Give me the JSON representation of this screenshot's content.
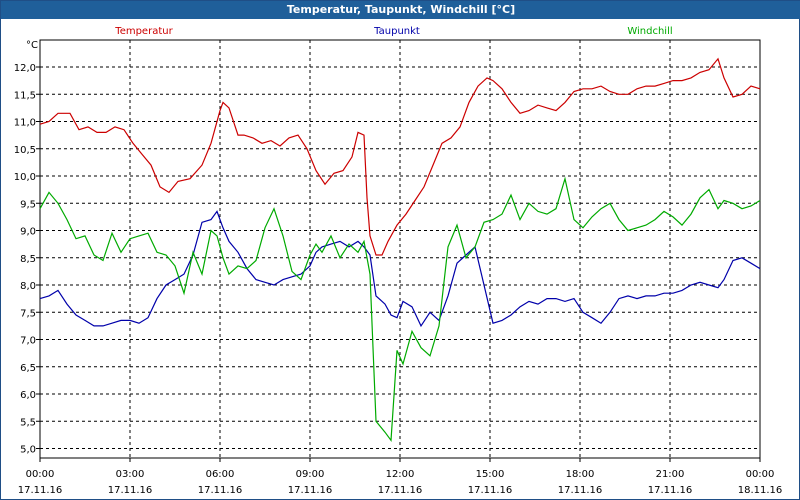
{
  "chart_data": {
    "type": "line",
    "title": "Temperatur, Taupunkt, Windchill [°C]",
    "ylabel": "°C",
    "ylim": [
      4.8,
      12.6
    ],
    "yticks": [
      "5,0",
      "5,5",
      "6,0",
      "6,5",
      "7,0",
      "7,5",
      "8,0",
      "8,5",
      "9,0",
      "9,5",
      "10,0",
      "10,5",
      "11,0",
      "11,5",
      "12,0"
    ],
    "xlim": [
      0,
      24
    ],
    "xticks": [
      {
        "time": "00:00",
        "date": "17.11.16"
      },
      {
        "time": "03:00",
        "date": "17.11.16"
      },
      {
        "time": "06:00",
        "date": "17.11.16"
      },
      {
        "time": "09:00",
        "date": "17.11.16"
      },
      {
        "time": "12:00",
        "date": "17.11.16"
      },
      {
        "time": "15:00",
        "date": "17.11.16"
      },
      {
        "time": "18:00",
        "date": "17.11.16"
      },
      {
        "time": "21:00",
        "date": "17.11.16"
      },
      {
        "time": "00:00",
        "date": "18.11.16"
      }
    ],
    "grid": true,
    "series": [
      {
        "name": "Temperatur",
        "color": "#cc0000",
        "x": [
          0,
          0.3,
          0.6,
          1.0,
          1.3,
          1.6,
          1.9,
          2.2,
          2.5,
          2.8,
          3.1,
          3.4,
          3.7,
          4.0,
          4.3,
          4.6,
          5.0,
          5.4,
          5.7,
          6.0,
          6.1,
          6.3,
          6.6,
          6.8,
          7.1,
          7.4,
          7.7,
          8.0,
          8.3,
          8.6,
          8.9,
          9.2,
          9.5,
          9.8,
          10.1,
          10.4,
          10.6,
          10.8,
          10.9,
          11.0,
          11.2,
          11.4,
          11.6,
          11.9,
          12.2,
          12.5,
          12.8,
          13.1,
          13.4,
          13.7,
          14.0,
          14.3,
          14.6,
          14.9,
          15.1,
          15.4,
          15.7,
          16.0,
          16.3,
          16.6,
          16.9,
          17.2,
          17.5,
          17.8,
          18.1,
          18.4,
          18.7,
          19.0,
          19.3,
          19.6,
          19.9,
          20.2,
          20.5,
          20.8,
          21.1,
          21.4,
          21.7,
          22.0,
          22.3,
          22.6,
          22.8,
          23.1,
          23.4,
          23.7,
          24.0
        ],
        "values": [
          10.95,
          11.0,
          11.15,
          11.15,
          10.85,
          10.9,
          10.8,
          10.8,
          10.9,
          10.85,
          10.6,
          10.4,
          10.2,
          9.8,
          9.7,
          9.9,
          9.95,
          10.2,
          10.6,
          11.2,
          11.35,
          11.25,
          10.75,
          10.75,
          10.7,
          10.6,
          10.65,
          10.55,
          10.7,
          10.75,
          10.5,
          10.1,
          9.85,
          10.05,
          10.1,
          10.35,
          10.8,
          10.75,
          9.6,
          8.9,
          8.55,
          8.55,
          8.8,
          9.1,
          9.3,
          9.55,
          9.8,
          10.2,
          10.6,
          10.7,
          10.9,
          11.35,
          11.65,
          11.8,
          11.75,
          11.6,
          11.35,
          11.15,
          11.2,
          11.3,
          11.25,
          11.2,
          11.35,
          11.55,
          11.6,
          11.6,
          11.65,
          11.55,
          11.5,
          11.5,
          11.6,
          11.65,
          11.65,
          11.7,
          11.75,
          11.75,
          11.8,
          11.9,
          11.95,
          12.15,
          11.8,
          11.45,
          11.5,
          11.65,
          11.6
        ]
      },
      {
        "name": "Taupunkt",
        "color": "#0000aa",
        "x": [
          0,
          0.3,
          0.6,
          0.9,
          1.2,
          1.5,
          1.8,
          2.1,
          2.4,
          2.7,
          3.0,
          3.3,
          3.6,
          3.9,
          4.2,
          4.5,
          4.8,
          5.1,
          5.4,
          5.7,
          5.9,
          6.1,
          6.3,
          6.6,
          6.9,
          7.2,
          7.5,
          7.8,
          8.1,
          8.4,
          8.7,
          9.0,
          9.2,
          9.4,
          9.7,
          10.0,
          10.3,
          10.6,
          10.8,
          11.0,
          11.2,
          11.5,
          11.7,
          11.9,
          12.1,
          12.4,
          12.7,
          13.0,
          13.3,
          13.6,
          13.9,
          14.2,
          14.5,
          14.8,
          15.1,
          15.4,
          15.7,
          16.0,
          16.3,
          16.6,
          16.9,
          17.2,
          17.5,
          17.8,
          18.1,
          18.4,
          18.7,
          19.0,
          19.3,
          19.6,
          19.9,
          20.2,
          20.5,
          20.8,
          21.1,
          21.4,
          21.7,
          22.0,
          22.3,
          22.6,
          22.8,
          23.1,
          23.4,
          23.7,
          24.0
        ],
        "values": [
          7.75,
          7.8,
          7.9,
          7.65,
          7.45,
          7.35,
          7.25,
          7.25,
          7.3,
          7.35,
          7.35,
          7.3,
          7.4,
          7.75,
          8.0,
          8.1,
          8.2,
          8.55,
          9.15,
          9.2,
          9.35,
          9.05,
          8.8,
          8.6,
          8.3,
          8.1,
          8.05,
          8.0,
          8.1,
          8.15,
          8.2,
          8.35,
          8.6,
          8.7,
          8.75,
          8.8,
          8.7,
          8.8,
          8.7,
          8.55,
          7.8,
          7.65,
          7.45,
          7.4,
          7.7,
          7.6,
          7.25,
          7.5,
          7.35,
          7.8,
          8.4,
          8.55,
          8.7,
          8.0,
          7.3,
          7.35,
          7.45,
          7.6,
          7.7,
          7.65,
          7.75,
          7.75,
          7.7,
          7.75,
          7.5,
          7.4,
          7.3,
          7.5,
          7.75,
          7.8,
          7.75,
          7.8,
          7.8,
          7.85,
          7.85,
          7.9,
          8.0,
          8.05,
          8.0,
          7.95,
          8.1,
          8.45,
          8.5,
          8.4,
          8.3
        ]
      },
      {
        "name": "Windchill",
        "color": "#00aa00",
        "x": [
          0,
          0.3,
          0.6,
          0.9,
          1.2,
          1.5,
          1.8,
          2.1,
          2.4,
          2.7,
          3.0,
          3.3,
          3.6,
          3.9,
          4.2,
          4.5,
          4.8,
          5.1,
          5.4,
          5.7,
          5.9,
          6.1,
          6.3,
          6.6,
          6.9,
          7.2,
          7.5,
          7.8,
          8.1,
          8.4,
          8.7,
          9.0,
          9.2,
          9.4,
          9.7,
          10.0,
          10.3,
          10.6,
          10.8,
          11.0,
          11.2,
          11.5,
          11.7,
          11.9,
          12.1,
          12.4,
          12.7,
          13.0,
          13.3,
          13.6,
          13.9,
          14.2,
          14.5,
          14.8,
          15.1,
          15.4,
          15.7,
          16.0,
          16.3,
          16.6,
          16.9,
          17.2,
          17.5,
          17.8,
          18.1,
          18.4,
          18.7,
          19.0,
          19.3,
          19.6,
          19.9,
          20.2,
          20.5,
          20.8,
          21.1,
          21.4,
          21.7,
          22.0,
          22.3,
          22.6,
          22.8,
          23.1,
          23.4,
          23.7,
          24.0
        ],
        "values": [
          9.4,
          9.7,
          9.5,
          9.2,
          8.85,
          8.9,
          8.55,
          8.45,
          8.95,
          8.6,
          8.85,
          8.9,
          8.95,
          8.6,
          8.55,
          8.35,
          7.85,
          8.6,
          8.2,
          9.0,
          8.9,
          8.5,
          8.2,
          8.35,
          8.3,
          8.45,
          9.05,
          9.4,
          8.9,
          8.25,
          8.1,
          8.55,
          8.75,
          8.6,
          8.9,
          8.5,
          8.75,
          8.6,
          8.8,
          8.2,
          5.5,
          5.3,
          5.15,
          6.8,
          6.55,
          7.15,
          6.85,
          6.7,
          7.25,
          8.7,
          9.1,
          8.5,
          8.7,
          9.15,
          9.2,
          9.3,
          9.65,
          9.2,
          9.5,
          9.35,
          9.3,
          9.4,
          9.95,
          9.2,
          9.05,
          9.25,
          9.4,
          9.5,
          9.2,
          9.0,
          9.05,
          9.1,
          9.2,
          9.35,
          9.25,
          9.1,
          9.3,
          9.6,
          9.75,
          9.4,
          9.55,
          9.5,
          9.4,
          9.45,
          9.55
        ]
      }
    ]
  }
}
